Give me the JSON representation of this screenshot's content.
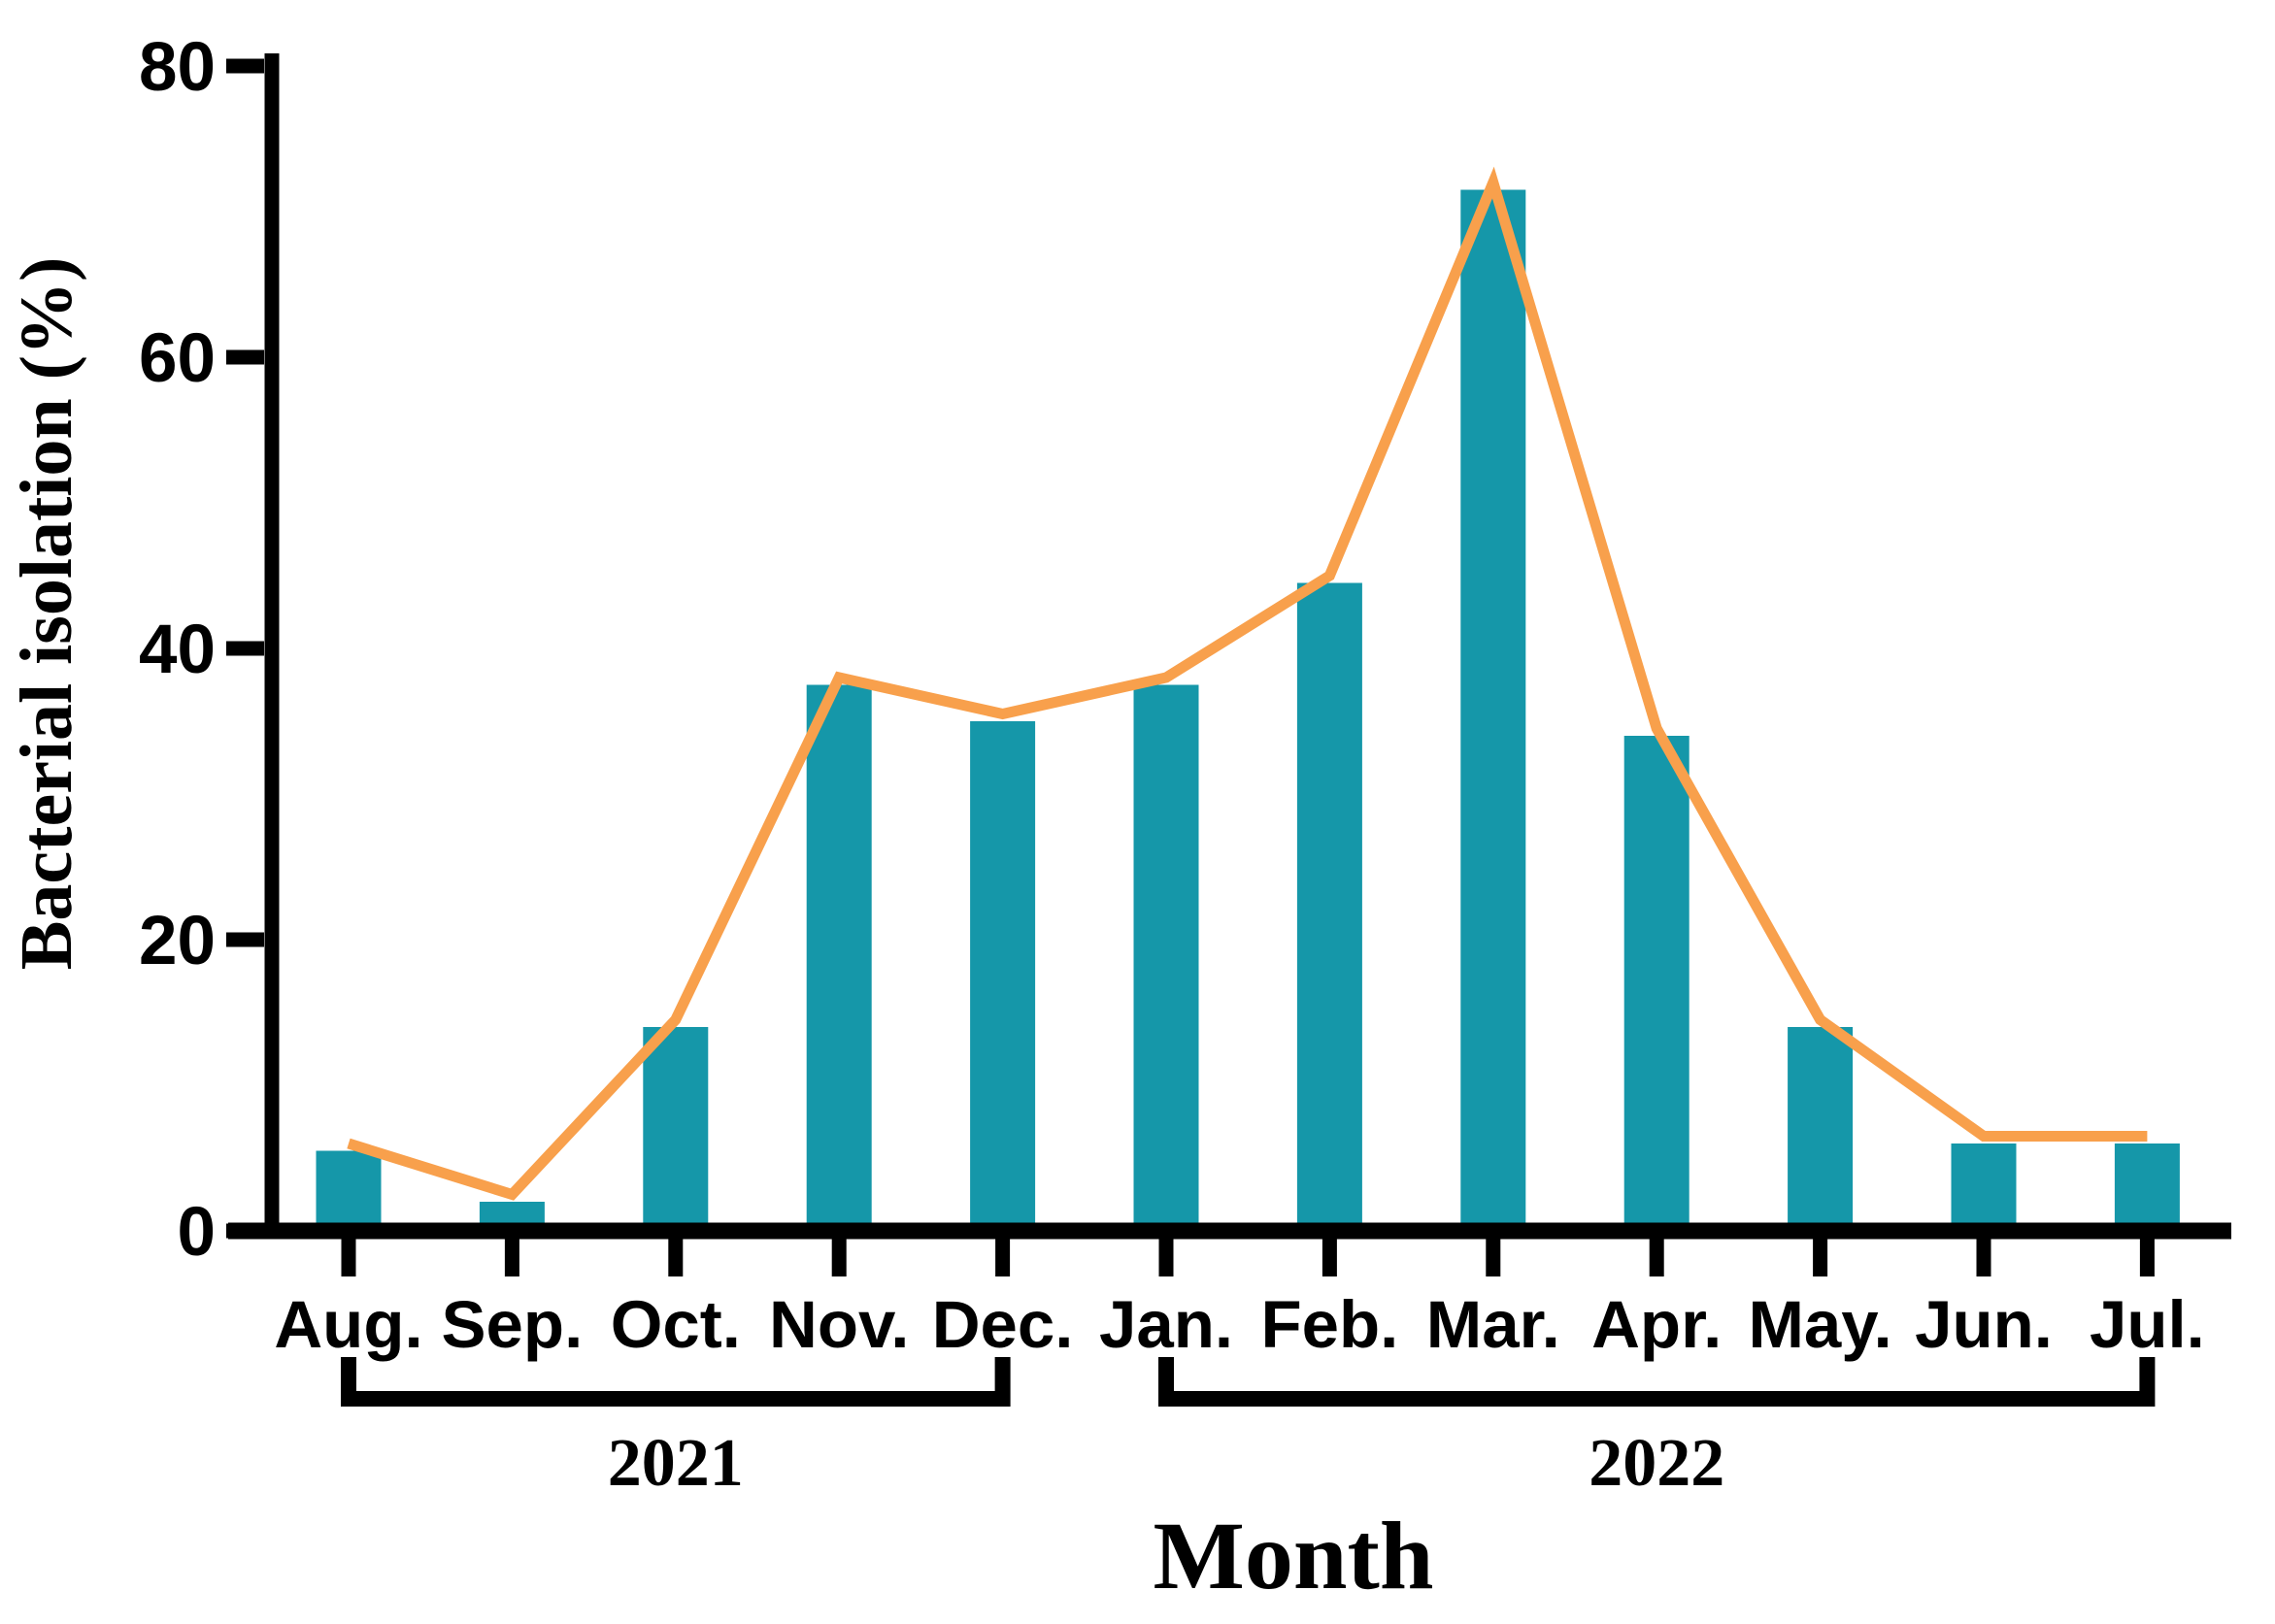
{
  "figure": {
    "background": "#FFFFFF",
    "axis_color": "#000000"
  },
  "chart_data": {
    "type": "bar",
    "overlay": "line",
    "title": "",
    "xlabel": "Month",
    "ylabel": "Bacterial isolation (%)",
    "categories": [
      "Aug.",
      "Sep.",
      "Oct.",
      "Nov.",
      "Dec.",
      "Jan.",
      "Feb.",
      "Mar.",
      "Apr.",
      "May.",
      "Jun.",
      "Jul."
    ],
    "series": [
      {
        "name": "Bacterial isolation bars",
        "type": "bar",
        "color": "#1597A9",
        "values": [
          5.5,
          2,
          14,
          37.5,
          35,
          37.5,
          44.5,
          71.5,
          34,
          14,
          6,
          6
        ]
      },
      {
        "name": "Bacterial isolation trend line",
        "type": "line",
        "color": "#F8A04C",
        "values": [
          6,
          2.5,
          14.5,
          38,
          35.5,
          38,
          45,
          72,
          34.5,
          14.5,
          6.5,
          6.5
        ]
      }
    ],
    "ylim": [
      0,
      80
    ],
    "yticks": [
      0,
      20,
      40,
      60,
      80
    ],
    "grid": false,
    "legend": "none",
    "year_groups": [
      {
        "label": "2021",
        "from": "Aug.",
        "to": "Dec."
      },
      {
        "label": "2022",
        "from": "Jan.",
        "to": "Jul."
      }
    ]
  }
}
